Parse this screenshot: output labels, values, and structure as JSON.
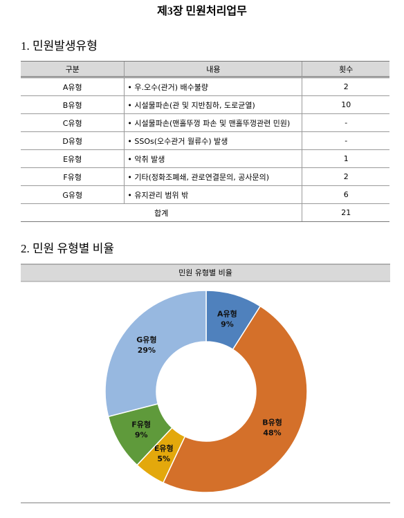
{
  "title": "제3장 민원처리업무",
  "section1": "1. 민원발생유형",
  "table": {
    "header": [
      "구분",
      "내용",
      "횟수"
    ],
    "rows": [
      [
        "A유형",
        "• 우.오수(관거) 배수불량",
        "2"
      ],
      [
        "B유형",
        "• 시설물파손(관 및 지반침하, 도로균열)",
        "10"
      ],
      [
        "C유형",
        "• 시설물파손(맨홀뚜껑 파손 및 맨홀뚜껑관련 민원)",
        "-"
      ],
      [
        "D유형",
        "• SSOs(오수관거 월류수) 발생",
        "-"
      ],
      [
        "E유형",
        "• 악취 발생",
        "1"
      ],
      [
        "F유형",
        "• 기타(정화조폐쇄, 관로연결문의, 공사문의)",
        "2"
      ],
      [
        "G유형",
        "• 유지관리 범위 밖",
        "6"
      ]
    ],
    "total": [
      "합계",
      "21"
    ]
  },
  "section2": "2. 민원 유형별 비율",
  "chart_data": {
    "type": "pie",
    "title": "민원 유형별 비율",
    "categories": [
      "A유형",
      "B유형",
      "E유형",
      "F유형",
      "G유형"
    ],
    "values": [
      9,
      48,
      5,
      9,
      29
    ],
    "value_labels": [
      "9%",
      "48%",
      "5%",
      "9%",
      "29%"
    ],
    "colors": [
      "#4f81bd",
      "#d4702a",
      "#e3a80c",
      "#5f9a3b",
      "#97b8e0"
    ],
    "donut": true
  }
}
